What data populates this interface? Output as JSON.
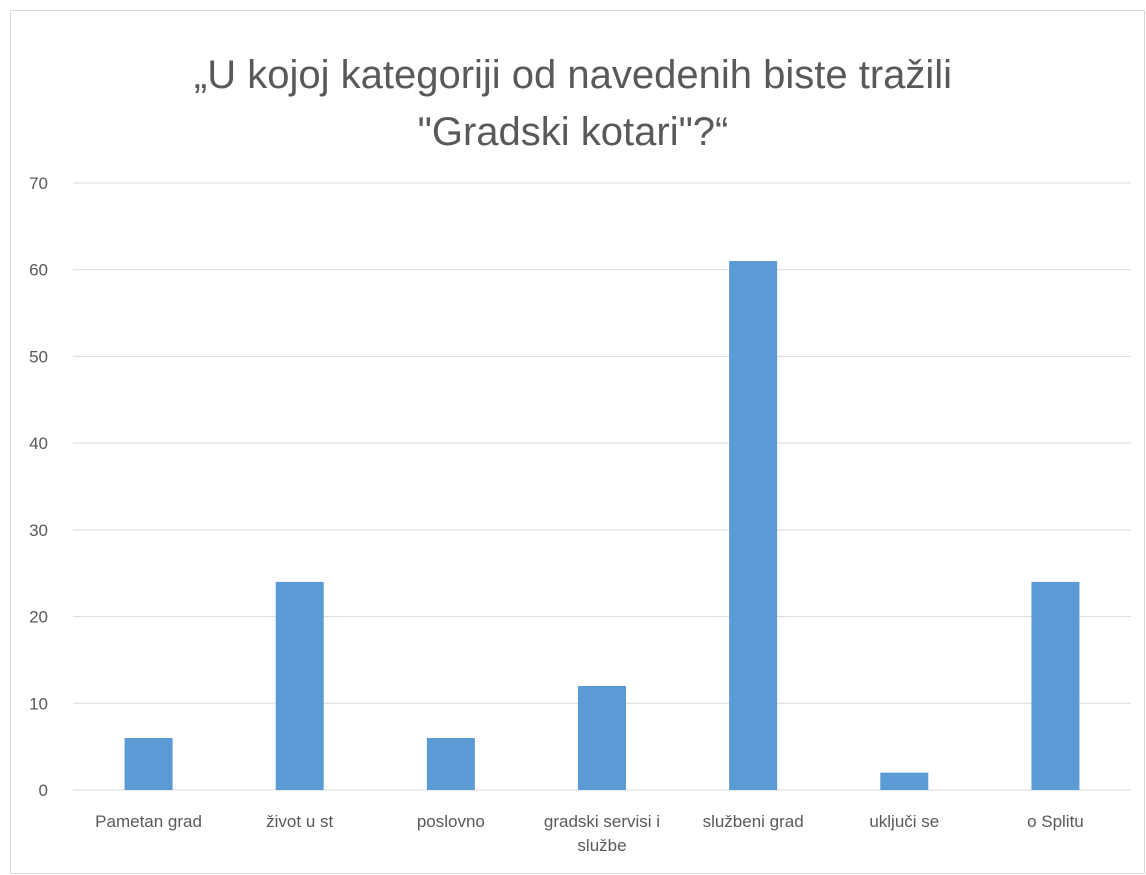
{
  "chart_data": {
    "type": "bar",
    "title": [
      "„U kojoj kategoriji od navedenih biste tražili",
      "\"Gradski kotari\"?“"
    ],
    "categories": [
      "Pametan grad",
      "život u st",
      "poslovno",
      "gradski servisi i službe",
      "službeni grad",
      "uključi se",
      "o Splitu"
    ],
    "values": [
      6,
      24,
      6,
      12,
      61,
      2,
      24
    ],
    "color": "#5b9bd5",
    "ylim": [
      0,
      70
    ],
    "yticks": [
      0,
      10,
      20,
      30,
      40,
      50,
      60,
      70
    ],
    "grid": true
  }
}
